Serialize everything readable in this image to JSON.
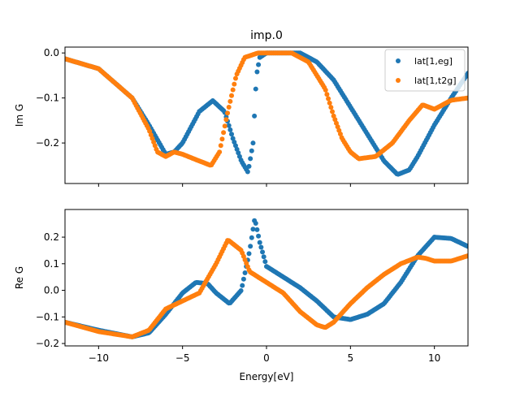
{
  "chart_data": [
    {
      "type": "scatter",
      "title": "imp.0",
      "xlabel": "",
      "ylabel": "Im G",
      "xlim": [
        -12,
        12
      ],
      "ylim": [
        -0.29,
        0.013
      ],
      "xticks": [
        -10,
        -5,
        0,
        5,
        10
      ],
      "yticks": [
        0.0,
        -0.1,
        -0.2
      ],
      "ytick_labels": [
        "0.0",
        "−0.1",
        "−0.2"
      ],
      "grid": false,
      "legend": {
        "placement": "top-right",
        "entries": [
          "lat[1,eg]",
          "lat[1,t2g]"
        ]
      },
      "series": [
        {
          "name": "lat[1,eg]",
          "color": "#1f77b4",
          "x": [
            -12,
            -10,
            -8,
            -7,
            -6,
            -5.5,
            -5,
            -4,
            -3.2,
            -2.5,
            -2,
            -1.5,
            -1.1,
            -0.8,
            -0.6,
            -0.4,
            0,
            2,
            3,
            4,
            5,
            6,
            7,
            7.8,
            8.5,
            9,
            10,
            11,
            12
          ],
          "y": [
            -0.013,
            -0.035,
            -0.1,
            -0.16,
            -0.225,
            -0.22,
            -0.2,
            -0.13,
            -0.106,
            -0.13,
            -0.19,
            -0.24,
            -0.265,
            -0.2,
            -0.05,
            -0.01,
            0,
            0,
            -0.02,
            -0.06,
            -0.12,
            -0.18,
            -0.24,
            -0.27,
            -0.26,
            -0.23,
            -0.16,
            -0.1,
            -0.045
          ]
        },
        {
          "name": "lat[1,t2g]",
          "color": "#ff7f0e",
          "x": [
            -12,
            -10,
            -8,
            -7,
            -6.5,
            -6,
            -5.5,
            -5,
            -4,
            -3.3,
            -2.8,
            -2.3,
            -1.8,
            -1.3,
            -0.5,
            1.5,
            2.5,
            3.5,
            4,
            4.5,
            5,
            5.5,
            6.5,
            7.5,
            8.5,
            9.3,
            10,
            11,
            12
          ],
          "y": [
            -0.013,
            -0.035,
            -0.1,
            -0.17,
            -0.22,
            -0.23,
            -0.22,
            -0.225,
            -0.24,
            -0.25,
            -0.22,
            -0.13,
            -0.05,
            -0.01,
            0,
            0,
            -0.02,
            -0.08,
            -0.14,
            -0.19,
            -0.22,
            -0.235,
            -0.23,
            -0.2,
            -0.15,
            -0.115,
            -0.125,
            -0.105,
            -0.1
          ]
        }
      ]
    },
    {
      "type": "scatter",
      "title": "",
      "xlabel": "Energy[eV]",
      "ylabel": "Re G",
      "xlim": [
        -12,
        12
      ],
      "ylim": [
        -0.209,
        0.304
      ],
      "xticks": [
        -10,
        -5,
        0,
        5,
        10
      ],
      "xtick_labels": [
        "−10",
        "−5",
        "0",
        "5",
        "10"
      ],
      "yticks": [
        0.2,
        0.1,
        0.0,
        -0.1,
        -0.2
      ],
      "ytick_labels": [
        "0.2",
        "0.1",
        "0.0",
        "−0.1",
        "−0.2"
      ],
      "grid": false,
      "series": [
        {
          "name": "lat[1,eg]",
          "color": "#1f77b4",
          "x": [
            -12,
            -10,
            -8,
            -7,
            -6,
            -5,
            -4.2,
            -3.5,
            -3,
            -2.2,
            -1.5,
            -1,
            -0.7,
            -0.4,
            0,
            1,
            2,
            3,
            4,
            5,
            6,
            7,
            8,
            9,
            10,
            11,
            12
          ],
          "y": [
            -0.12,
            -0.15,
            -0.175,
            -0.16,
            -0.09,
            -0.01,
            0.03,
            0.025,
            -0.01,
            -0.05,
            0.0,
            0.15,
            0.27,
            0.18,
            0.09,
            0.05,
            0.01,
            -0.04,
            -0.1,
            -0.11,
            -0.09,
            -0.05,
            0.03,
            0.13,
            0.2,
            0.195,
            0.165
          ]
        },
        {
          "name": "lat[1,t2g]",
          "color": "#ff7f0e",
          "x": [
            -12,
            -10,
            -8,
            -7,
            -6,
            -5,
            -4,
            -3,
            -2.3,
            -1.5,
            -1,
            0,
            1,
            2,
            3,
            3.5,
            4,
            5,
            6,
            7,
            8,
            9,
            9.5,
            10,
            11,
            12
          ],
          "y": [
            -0.12,
            -0.155,
            -0.175,
            -0.15,
            -0.07,
            -0.04,
            -0.01,
            0.1,
            0.19,
            0.15,
            0.07,
            0.03,
            -0.01,
            -0.08,
            -0.13,
            -0.14,
            -0.12,
            -0.05,
            0.01,
            0.06,
            0.1,
            0.125,
            0.12,
            0.11,
            0.11,
            0.13
          ]
        }
      ]
    }
  ]
}
